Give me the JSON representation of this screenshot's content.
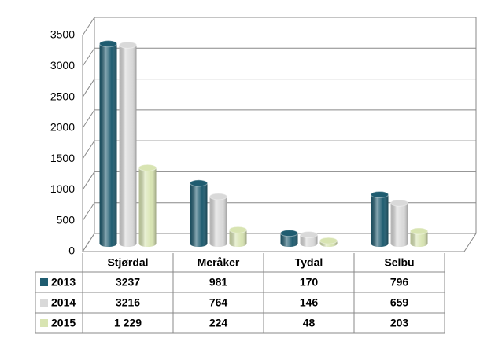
{
  "chart_data": {
    "type": "bar",
    "categories": [
      "Stjørdal",
      "Meråker",
      "Tydal",
      "Selbu"
    ],
    "series": [
      {
        "name": "2013",
        "color": "#1f5c70",
        "values": [
          3237,
          981,
          170,
          796
        ]
      },
      {
        "name": "2014",
        "color": "#d9d9d9",
        "values": [
          3216,
          764,
          146,
          659
        ]
      },
      {
        "name": "2015",
        "color": "#d8e4b2",
        "values": [
          1229,
          224,
          48,
          203
        ],
        "value_labels": [
          "1 229",
          "224",
          "48",
          "203"
        ]
      }
    ],
    "ylim": [
      0,
      3500
    ],
    "yticks": [
      0,
      500,
      1000,
      1500,
      2000,
      2500,
      3000,
      3500
    ],
    "grid": true
  }
}
